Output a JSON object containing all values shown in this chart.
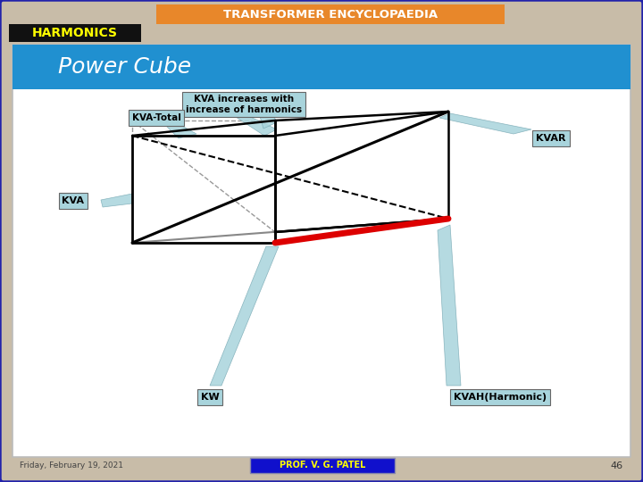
{
  "title_text": "TRANSFORMER ENCYCLOPAEDIA",
  "title_bg": "#E8872A",
  "title_color": "#FFFFFF",
  "harmonics_text": "HARMONICS",
  "harmonics_bg": "#111111",
  "harmonics_color": "#FFFF00",
  "slide_bg": "#C8BCA8",
  "blue_banner_bg": "#2090D0",
  "power_cube_text": "Power Cube",
  "power_cube_color": "#FFFFFF",
  "content_bg": "#FFFFFF",
  "footer_date": "Friday, February 19, 2021",
  "footer_name": "PROF. V. G. PATEL",
  "footer_name_bg": "#1010CC",
  "footer_name_color": "#FFFF00",
  "footer_page": "46",
  "ann_bg": "#A8D4DC",
  "ann_edge": "#666666",
  "label_kva_increases": "KVA increases with\nincrease of harmonics",
  "label_kva_total": "KVA-Total",
  "label_kvar": "KVAR",
  "label_kva": "KVA",
  "label_kw": "KW",
  "label_kvah": "KVAH(Harmonic)",
  "box_edge": "#000000",
  "red_line": "#DD0000",
  "gray_diag": "#888888",
  "pointer_color": "#A8D4DC"
}
